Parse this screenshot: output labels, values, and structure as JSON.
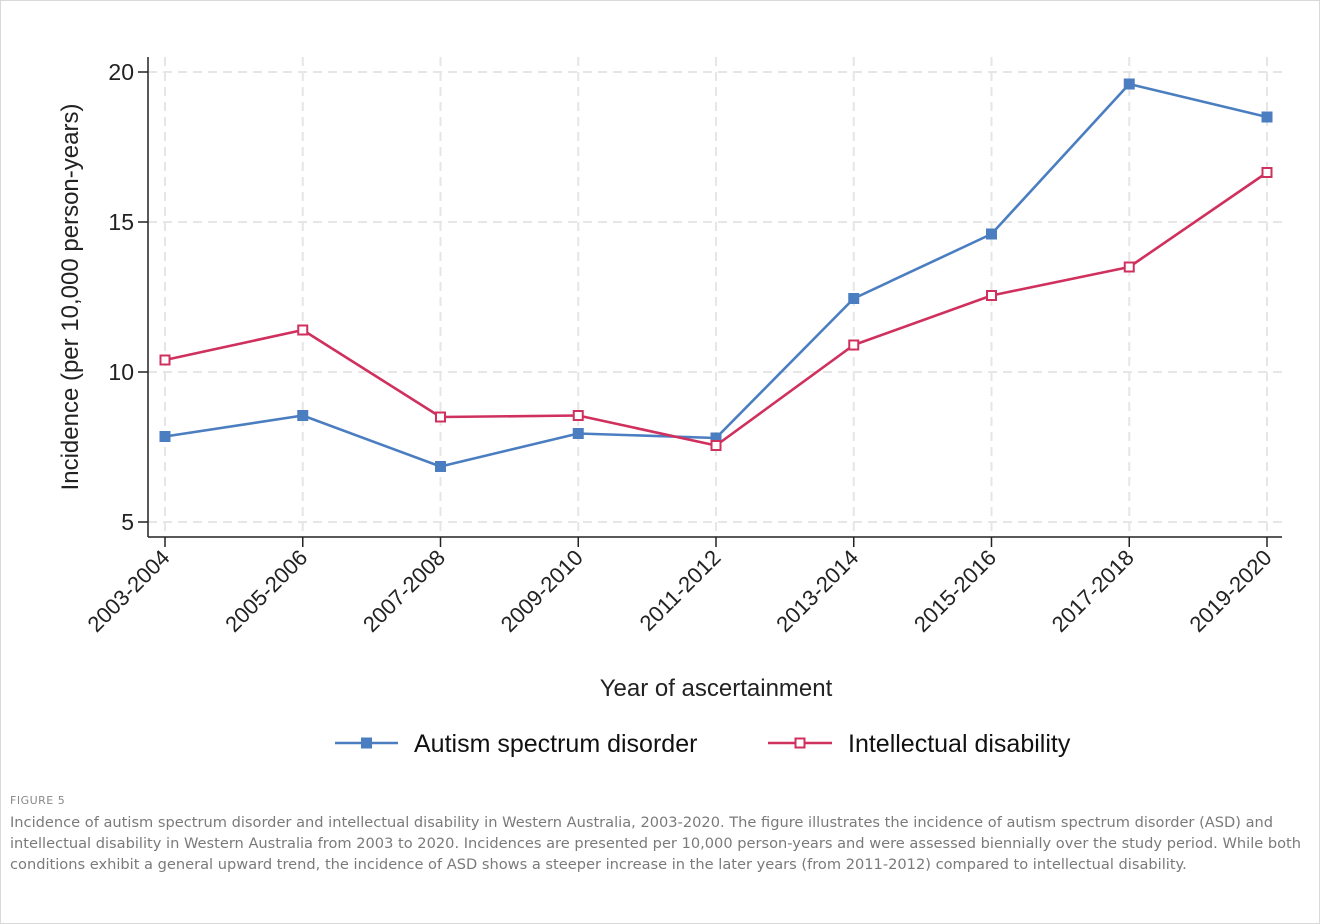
{
  "figure_label": "FIGURE 5",
  "caption": "Incidence of autism spectrum disorder and intellectual disability in Western Australia, 2003-2020. The figure illustrates the incidence of autism spectrum disorder (ASD) and intellectual disability in Western Australia from 2003 to 2020. Incidences are presented per 10,000 person-years and were assessed biennially over the study period. While both conditions exhibit a general upward trend, the incidence of ASD shows a steeper increase in the later years (from 2011-2012) compared to intellectual disability.",
  "colors": {
    "asd": "#4A7EC1",
    "id": "#D0305E",
    "grid": "#e6e6e6",
    "axis": "#222222"
  },
  "chart_data": {
    "type": "line",
    "title": "",
    "xlabel": "Year of ascertainment",
    "ylabel": "Incidence (per 10,000 person-years)",
    "categories": [
      "2003-2004",
      "2005-2006",
      "2007-2008",
      "2009-2010",
      "2011-2012",
      "2013-2014",
      "2015-2016",
      "2017-2018",
      "2019-2020"
    ],
    "yticks": [
      5,
      10,
      15,
      20
    ],
    "ylim": [
      4.5,
      20.5
    ],
    "grid": true,
    "legend_position": "bottom",
    "series": [
      {
        "name": "Autism spectrum disorder",
        "marker": "filled-square",
        "values": [
          7.85,
          8.55,
          6.85,
          7.95,
          7.8,
          12.45,
          14.6,
          19.6,
          18.5
        ]
      },
      {
        "name": "Intellectual disability",
        "marker": "hollow-square",
        "values": [
          10.4,
          11.4,
          8.5,
          8.55,
          7.55,
          10.9,
          12.55,
          13.5,
          16.65
        ]
      }
    ]
  }
}
